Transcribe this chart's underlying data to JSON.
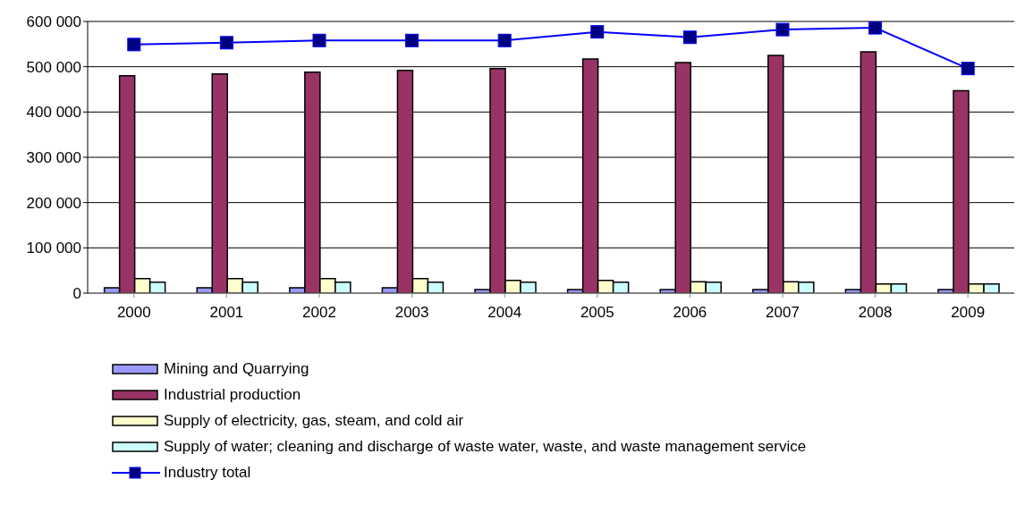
{
  "chart_data": {
    "type": "bar",
    "categories": [
      "2000",
      "2001",
      "2002",
      "2003",
      "2004",
      "2005",
      "2006",
      "2007",
      "2008",
      "2009"
    ],
    "series": [
      {
        "name": "Mining and Quarrying",
        "color": "#9999ff",
        "values": [
          12000,
          12000,
          12000,
          12000,
          8000,
          8000,
          8000,
          8000,
          8000,
          8000
        ]
      },
      {
        "name": "Industrial production",
        "color": "#993366",
        "values": [
          480000,
          484000,
          488000,
          492000,
          496000,
          517000,
          509000,
          525000,
          533000,
          447000
        ]
      },
      {
        "name": "Supply of electricity, gas, steam, and cold air",
        "color": "#ffffcc",
        "values": [
          32000,
          32000,
          32000,
          32000,
          28000,
          28000,
          25000,
          25000,
          20000,
          20000
        ]
      },
      {
        "name": "Supply of water; cleaning and discharge of waste water, waste, and waste management service",
        "color": "#ccffff",
        "values": [
          24000,
          24000,
          24000,
          24000,
          24000,
          24000,
          24000,
          24000,
          20000,
          20000
        ]
      },
      {
        "name": "Industry total",
        "type": "line",
        "color": "#0000ff",
        "marker": "square",
        "values": [
          549000,
          553000,
          558000,
          558000,
          558000,
          577000,
          565000,
          582000,
          586000,
          496000
        ]
      }
    ],
    "ylim": [
      0,
      600000
    ],
    "yticks": [
      {
        "value": 0,
        "label": "0"
      },
      {
        "value": 100000,
        "label": "100 000"
      },
      {
        "value": 200000,
        "label": "200 000"
      },
      {
        "value": 300000,
        "label": "300 000"
      },
      {
        "value": 400000,
        "label": "400 000"
      },
      {
        "value": 500000,
        "label": "500 000"
      },
      {
        "value": 600000,
        "label": "600 000"
      }
    ],
    "grid": "y",
    "legend": "bottom left"
  }
}
